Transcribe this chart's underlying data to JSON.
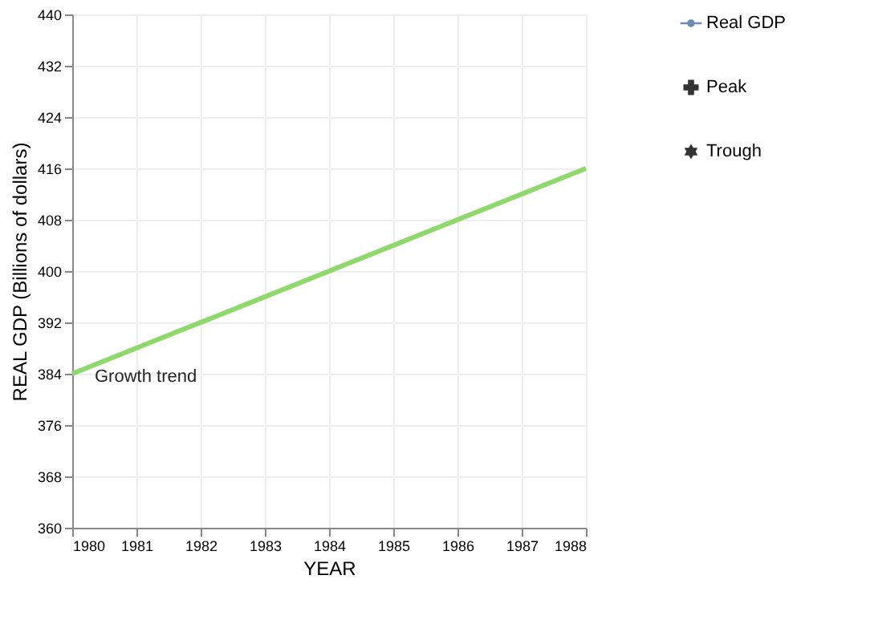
{
  "chart_data": {
    "type": "line",
    "xlabel": "YEAR",
    "ylabel": "REAL GDP (Billions of dollars)",
    "xlim": [
      1980,
      1988
    ],
    "xticks": [
      1980,
      1981,
      1982,
      1983,
      1984,
      1985,
      1986,
      1987,
      1988
    ],
    "ylim": [
      360,
      440
    ],
    "yticks": [
      360,
      368,
      376,
      384,
      392,
      400,
      408,
      416,
      424,
      432,
      440
    ],
    "grid": true,
    "legend": "right",
    "series": [
      {
        "name": "Growth trend",
        "color": "#8fd96c",
        "x": [
          1980,
          1988
        ],
        "values": [
          384,
          416
        ]
      },
      {
        "name": "Real GDP",
        "type": "line",
        "color": "#6a8db5",
        "marker": "circle"
      },
      {
        "name": "Peak",
        "type": "scatter",
        "color": "#333333",
        "marker": "cross"
      },
      {
        "name": "Trough",
        "type": "scatter",
        "color": "#333333",
        "marker": "star"
      }
    ]
  }
}
